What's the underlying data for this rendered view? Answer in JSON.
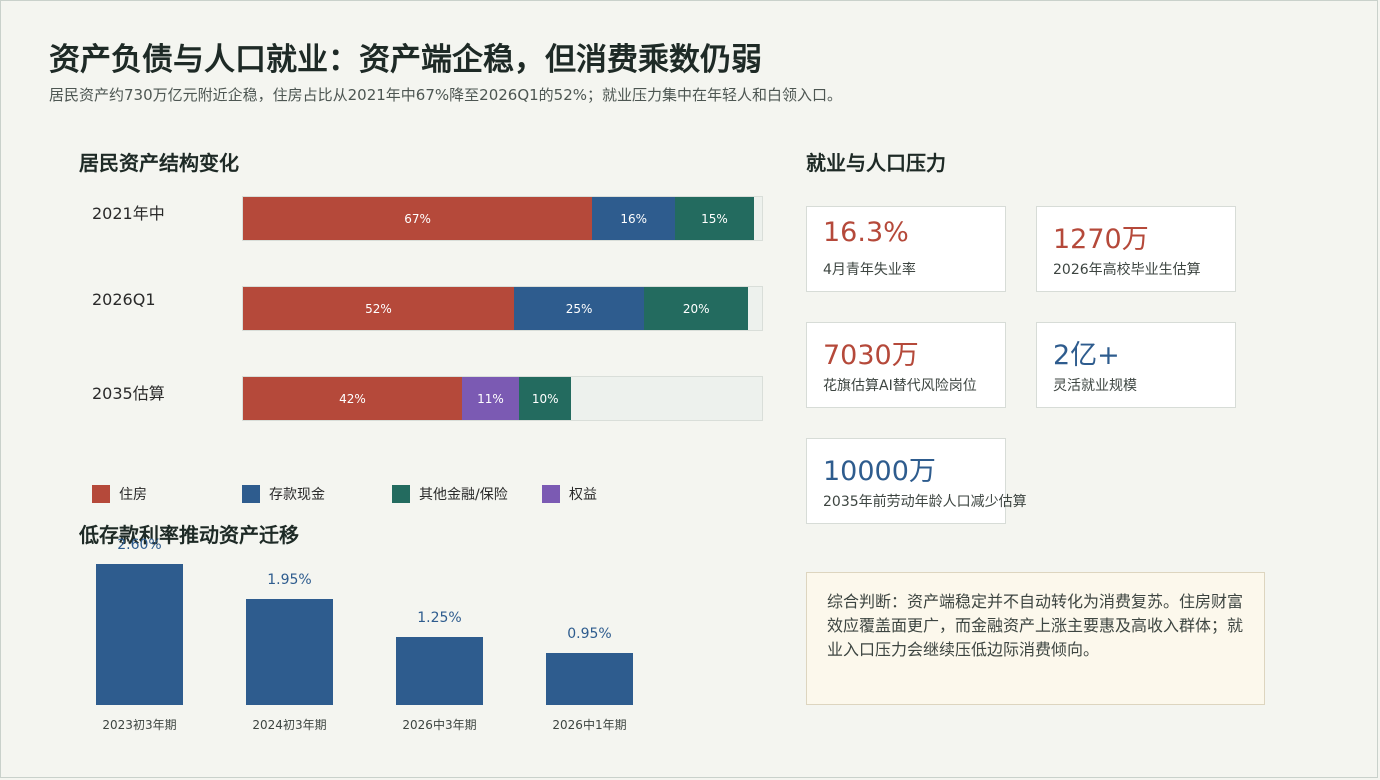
{
  "title": "资产负债与人口就业：资产端企稳，但消费乘数仍弱",
  "subtitle": "居民资产约730万亿元附近企稳，住房占比从2021年中67%降至2026Q1的52%；就业压力集中在年轻人和白领入口。",
  "colors": {
    "housing": "#b5493a",
    "cash": "#2e5c8e",
    "other": "#236b5f",
    "equity": "#7b5ab3",
    "kpi_red": "#b5493a",
    "kpi_blue": "#2e5c8e"
  },
  "chart_data": [
    {
      "type": "bar",
      "orientation": "horizontal",
      "stacked": true,
      "title": "居民资产结构变化",
      "categories": [
        "2021年中",
        "2026Q1",
        "2035估算"
      ],
      "series": [
        {
          "name": "住房",
          "values": [
            67,
            52,
            42
          ],
          "labels": [
            "67%",
            "52%",
            "42%"
          ]
        },
        {
          "name": "存款现金",
          "values": [
            16,
            25,
            0
          ],
          "labels": [
            "16%",
            "25%",
            ""
          ]
        },
        {
          "name": "其他金融/保险",
          "values": [
            15,
            20,
            10
          ],
          "labels": [
            "15%",
            "20%",
            "10%"
          ]
        },
        {
          "name": "权益",
          "values": [
            0,
            0,
            11
          ],
          "labels": [
            "",
            "",
            "11%"
          ]
        }
      ],
      "segment_order": [
        [
          "住房",
          "存款现金",
          "其他金融/保险"
        ],
        [
          "住房",
          "存款现金",
          "其他金融/保险"
        ],
        [
          "住房",
          "权益",
          "其他金融/保险"
        ]
      ],
      "xlim": [
        0,
        100
      ],
      "legend_position": "bottom-left"
    },
    {
      "type": "bar",
      "title": "低存款利率推动资产迁移",
      "categories": [
        "2023初3年期",
        "2024初3年期",
        "2026中3年期",
        "2026中1年期"
      ],
      "values": [
        2.6,
        1.95,
        1.25,
        0.95
      ],
      "labels": [
        "2.60%",
        "1.95%",
        "1.25%",
        "0.95%"
      ],
      "ylim": [
        0,
        2.6
      ]
    }
  ],
  "kpi_section": {
    "title": "就业与人口压力",
    "cards": [
      {
        "value": "16.3%",
        "label": "4月青年失业率",
        "tone": "red"
      },
      {
        "value": "1270万",
        "label": "2026年高校毕业生估算",
        "tone": "red"
      },
      {
        "value": "7030万",
        "label": "花旗估算AI替代风险岗位",
        "tone": "red"
      },
      {
        "value": "2亿+",
        "label": "灵活就业规模",
        "tone": "blue"
      },
      {
        "value": "10000万",
        "label": "2035年前劳动年龄人口减少估算",
        "tone": "blue"
      }
    ]
  },
  "note": "综合判断：资产端稳定并不自动转化为消费复苏。住房财富效应覆盖面更广，而金融资产上涨主要惠及高收入群体；就业入口压力会继续压低边际消费倾向。"
}
